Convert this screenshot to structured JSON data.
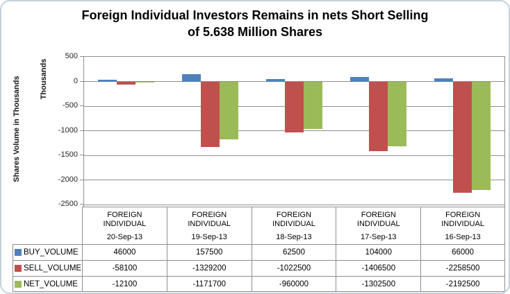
{
  "title": {
    "lines": [
      "Foreign Individual Investors Remains in nets Short Selling",
      "of 5.638 Million Shares"
    ]
  },
  "y_axis": {
    "title": "Shares Volume in Thousands",
    "units_label": "Thousands",
    "tick_labels": [
      "500",
      "0",
      "-500",
      "-1000",
      "-1500",
      "-2000",
      "-2500"
    ]
  },
  "chart_data": {
    "type": "bar",
    "title": "Foreign Individual Investors Remains in nets Short Selling of 5.638 Million Shares",
    "ylabel": "Shares Volume in Thousands",
    "y_display_units": "Thousands",
    "ylim_thousands": [
      -2500,
      500
    ],
    "y_tick_step_thousands": 500,
    "grid": true,
    "legend_position": "data-table-left-column",
    "categories": [
      {
        "label": "FOREIGN INDIVIDUAL",
        "date": "20-Sep-13"
      },
      {
        "label": "FOREIGN INDIVIDUAL",
        "date": "19-Sep-13"
      },
      {
        "label": "FOREIGN INDIVIDUAL",
        "date": "18-Sep-13"
      },
      {
        "label": "FOREIGN INDIVIDUAL",
        "date": "17-Sep-13"
      },
      {
        "label": "FOREIGN INDIVIDUAL",
        "date": "16-Sep-13"
      }
    ],
    "series": [
      {
        "name": "BUY_VOLUME",
        "color": "#4F81BD",
        "values": [
          46000,
          157500,
          62500,
          104000,
          66000
        ]
      },
      {
        "name": "SELL_VOLUME",
        "color": "#C0504D",
        "values": [
          -58100,
          -1329200,
          -1022500,
          -1406500,
          -2258500
        ]
      },
      {
        "name": "NET_VOLUME",
        "color": "#9BBB59",
        "values": [
          -12100,
          -1171700,
          -960000,
          -1302500,
          -2192500
        ]
      }
    ]
  },
  "style_colors": {
    "buy_blue": "#4F81BD",
    "sell_red": "#C0504D",
    "net_green": "#9BBB59",
    "gridline_gray": "#8e8e8e",
    "frame_border": "#c3d2dd"
  }
}
